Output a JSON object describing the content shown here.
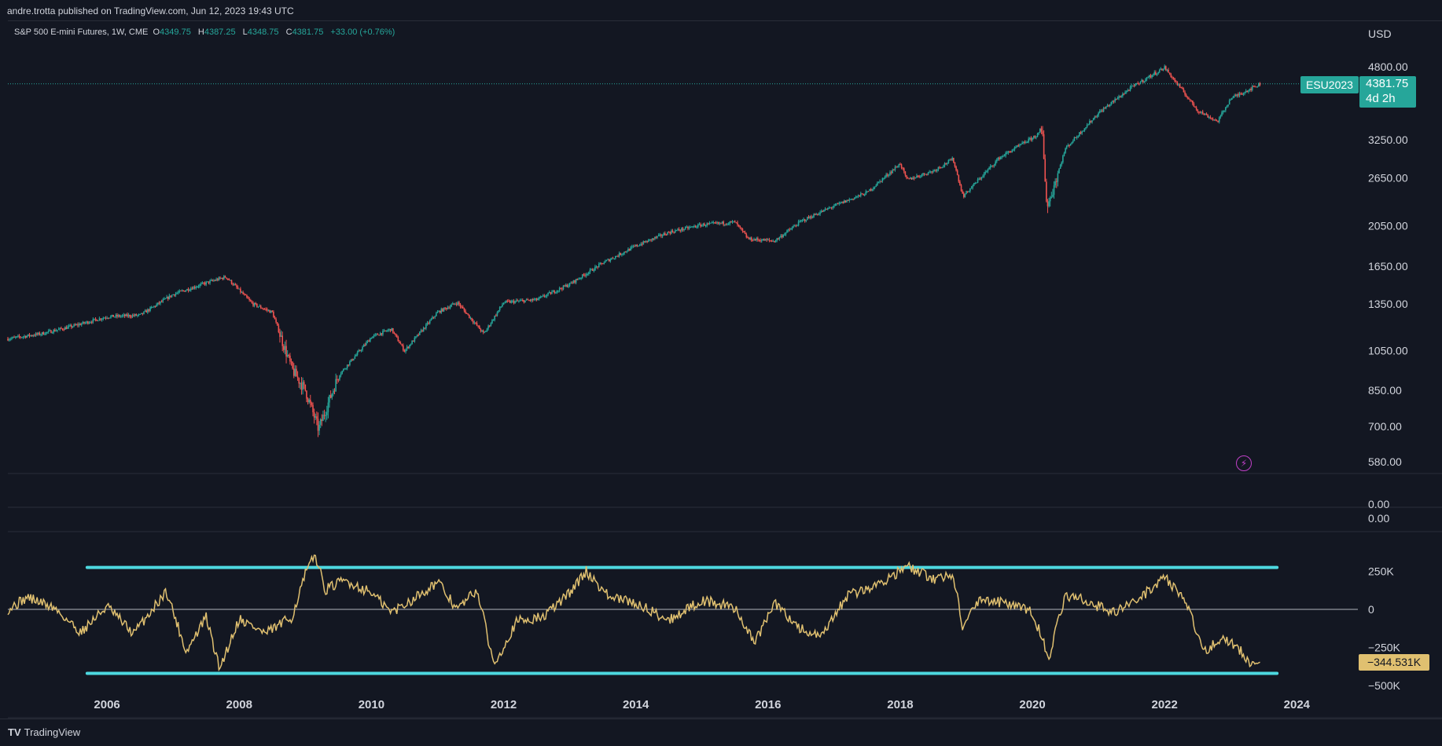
{
  "header": {
    "published": "andre.trotta published on TradingView.com, Jun 12, 2023 19:43 UTC"
  },
  "legend": {
    "symbol": "S&P 500 E-mini Futures, 1W, CME",
    "open_label": "O",
    "open": "4349.75",
    "high_label": "H",
    "high": "4387.25",
    "low_label": "L",
    "low": "4348.75",
    "close_label": "C",
    "close": "4381.75",
    "change": "+33.00 (+0.76%)"
  },
  "price_axis": {
    "currency": "USD",
    "ticks": [
      "4800.00",
      "3250.00",
      "2650.00",
      "2050.00",
      "1650.00",
      "1350.00",
      "1050.00",
      "850.00",
      "700.00",
      "580.00"
    ],
    "tick_values": [
      4800,
      3250,
      2650,
      2050,
      1650,
      1350,
      1050,
      850,
      700,
      580
    ],
    "empty_pane_tick": "0.00",
    "osc_top_tick": "0.00"
  },
  "symbol_tag": "ESU2023",
  "price_tag": {
    "price": "4381.75",
    "countdown": "4d 2h"
  },
  "osc_axis": {
    "ticks": [
      "250K",
      "0",
      "−250K",
      "−500K"
    ],
    "tick_values": [
      250000,
      0,
      -250000,
      -500000
    ],
    "last_value_label": "−344.531K",
    "upper_band": 275000,
    "lower_band": -420000
  },
  "time_axis": {
    "years": [
      "2006",
      "2008",
      "2010",
      "2012",
      "2014",
      "2016",
      "2018",
      "2020",
      "2022",
      "2024"
    ]
  },
  "footer": {
    "brand": "TradingView"
  },
  "colors": {
    "bg": "#131722",
    "up": "#26a69a",
    "down": "#ef5350",
    "osc_line": "#e0c070",
    "band": "#4dd8e0",
    "text": "#d1d4dc",
    "grid": "#2a2e39"
  },
  "chart_data": [
    {
      "type": "candlestick",
      "title": "S&P 500 E-mini Futures, 1W, CME",
      "y_scale": "log",
      "ylim": [
        560,
        5000
      ],
      "x": [
        2004.5,
        2005,
        2005.5,
        2006,
        2006.5,
        2007,
        2007.5,
        2007.8,
        2008.2,
        2008.5,
        2008.8,
        2009.0,
        2009.2,
        2009.5,
        2010,
        2010.3,
        2010.5,
        2011,
        2011.3,
        2011.7,
        2012,
        2012.5,
        2013,
        2013.5,
        2014,
        2014.5,
        2015,
        2015.5,
        2015.7,
        2016.1,
        2016.5,
        2017,
        2017.5,
        2018.0,
        2018.1,
        2018.5,
        2018.8,
        2018.95,
        2019.5,
        2020.0,
        2020.15,
        2020.22,
        2020.5,
        2021,
        2021.5,
        2022.0,
        2022.5,
        2022.8,
        2023,
        2023.45
      ],
      "values": [
        1120,
        1150,
        1200,
        1260,
        1270,
        1420,
        1510,
        1560,
        1350,
        1290,
        950,
        850,
        690,
        920,
        1130,
        1180,
        1050,
        1290,
        1360,
        1150,
        1360,
        1380,
        1500,
        1680,
        1840,
        1980,
        2060,
        2090,
        1910,
        1890,
        2100,
        2280,
        2450,
        2860,
        2620,
        2750,
        2930,
        2400,
        2950,
        3280,
        3390,
        2250,
        3100,
        3750,
        4300,
        4780,
        3800,
        3580,
        4050,
        4381.75
      ]
    },
    {
      "type": "line",
      "title": "",
      "ylim": [
        -520000,
        440000
      ],
      "series": [
        {
          "name": "",
          "x": [
            2004.5,
            2004.8,
            2005.2,
            2005.6,
            2006.0,
            2006.4,
            2006.9,
            2007.2,
            2007.5,
            2007.7,
            2008.0,
            2008.4,
            2008.8,
            2009.0,
            2009.15,
            2009.3,
            2009.6,
            2010.0,
            2010.3,
            2010.6,
            2011.0,
            2011.3,
            2011.6,
            2011.85,
            2012.2,
            2012.6,
            2013.0,
            2013.25,
            2013.6,
            2014.0,
            2014.5,
            2015.0,
            2015.5,
            2015.8,
            2016.1,
            2016.5,
            2016.8,
            2017.2,
            2017.6,
            2018.1,
            2018.5,
            2018.8,
            2018.95,
            2019.2,
            2019.6,
            2020.0,
            2020.25,
            2020.5,
            2020.8,
            2021.2,
            2021.6,
            2022.0,
            2022.3,
            2022.6,
            2022.9,
            2023.1,
            2023.3,
            2023.45
          ],
          "values": [
            0,
            80000,
            10000,
            -150000,
            20000,
            -160000,
            120000,
            -280000,
            -50000,
            -390000,
            -60000,
            -160000,
            -50000,
            230000,
            360000,
            130000,
            190000,
            110000,
            -20000,
            60000,
            180000,
            0,
            130000,
            -360000,
            -80000,
            -50000,
            110000,
            250000,
            80000,
            40000,
            -70000,
            60000,
            10000,
            -220000,
            40000,
            -130000,
            -190000,
            90000,
            150000,
            280000,
            200000,
            230000,
            -120000,
            70000,
            40000,
            -20000,
            -310000,
            90000,
            60000,
            -20000,
            60000,
            220000,
            60000,
            -270000,
            -190000,
            -240000,
            -380000,
            -344531
          ]
        }
      ]
    }
  ]
}
